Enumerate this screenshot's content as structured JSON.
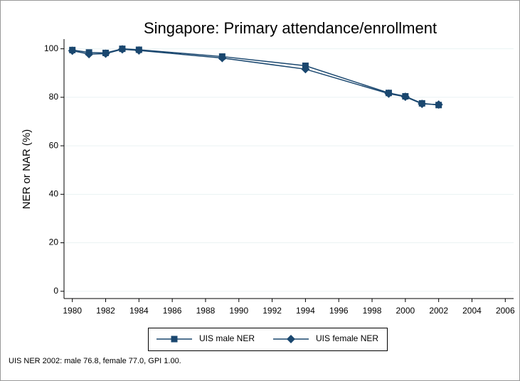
{
  "chart_data": {
    "type": "line",
    "title": "Singapore: Primary attendance/enrollment",
    "ylabel": "NER or NAR (%)",
    "note": "UIS NER 2002: male 76.8, female 77.0, GPI 1.00.",
    "x": [
      1980,
      1981,
      1982,
      1983,
      1984,
      1989,
      1994,
      1999,
      2000,
      2001,
      2002
    ],
    "series": [
      {
        "name": "UIS male NER",
        "color": "#1a476f",
        "marker": "square",
        "values": [
          99.5,
          98.5,
          98.3,
          100,
          99.6,
          96.8,
          93.0,
          81.8,
          80.4,
          77.5,
          76.8
        ]
      },
      {
        "name": "UIS female NER",
        "color": "#1a476f",
        "marker": "diamond",
        "values": [
          99.2,
          97.8,
          98.0,
          99.8,
          99.3,
          96.2,
          91.6,
          81.5,
          80.2,
          77.3,
          77.0
        ]
      }
    ],
    "xlim": [
      1979.5,
      2006.5
    ],
    "xticks": [
      1980,
      1982,
      1984,
      1986,
      1988,
      1990,
      1992,
      1994,
      1996,
      1998,
      2000,
      2002,
      2004,
      2006
    ],
    "ylim": [
      -3,
      104
    ],
    "yticks": [
      0,
      20,
      40,
      60,
      80,
      100
    ],
    "grid": true,
    "legend": "bottom"
  }
}
